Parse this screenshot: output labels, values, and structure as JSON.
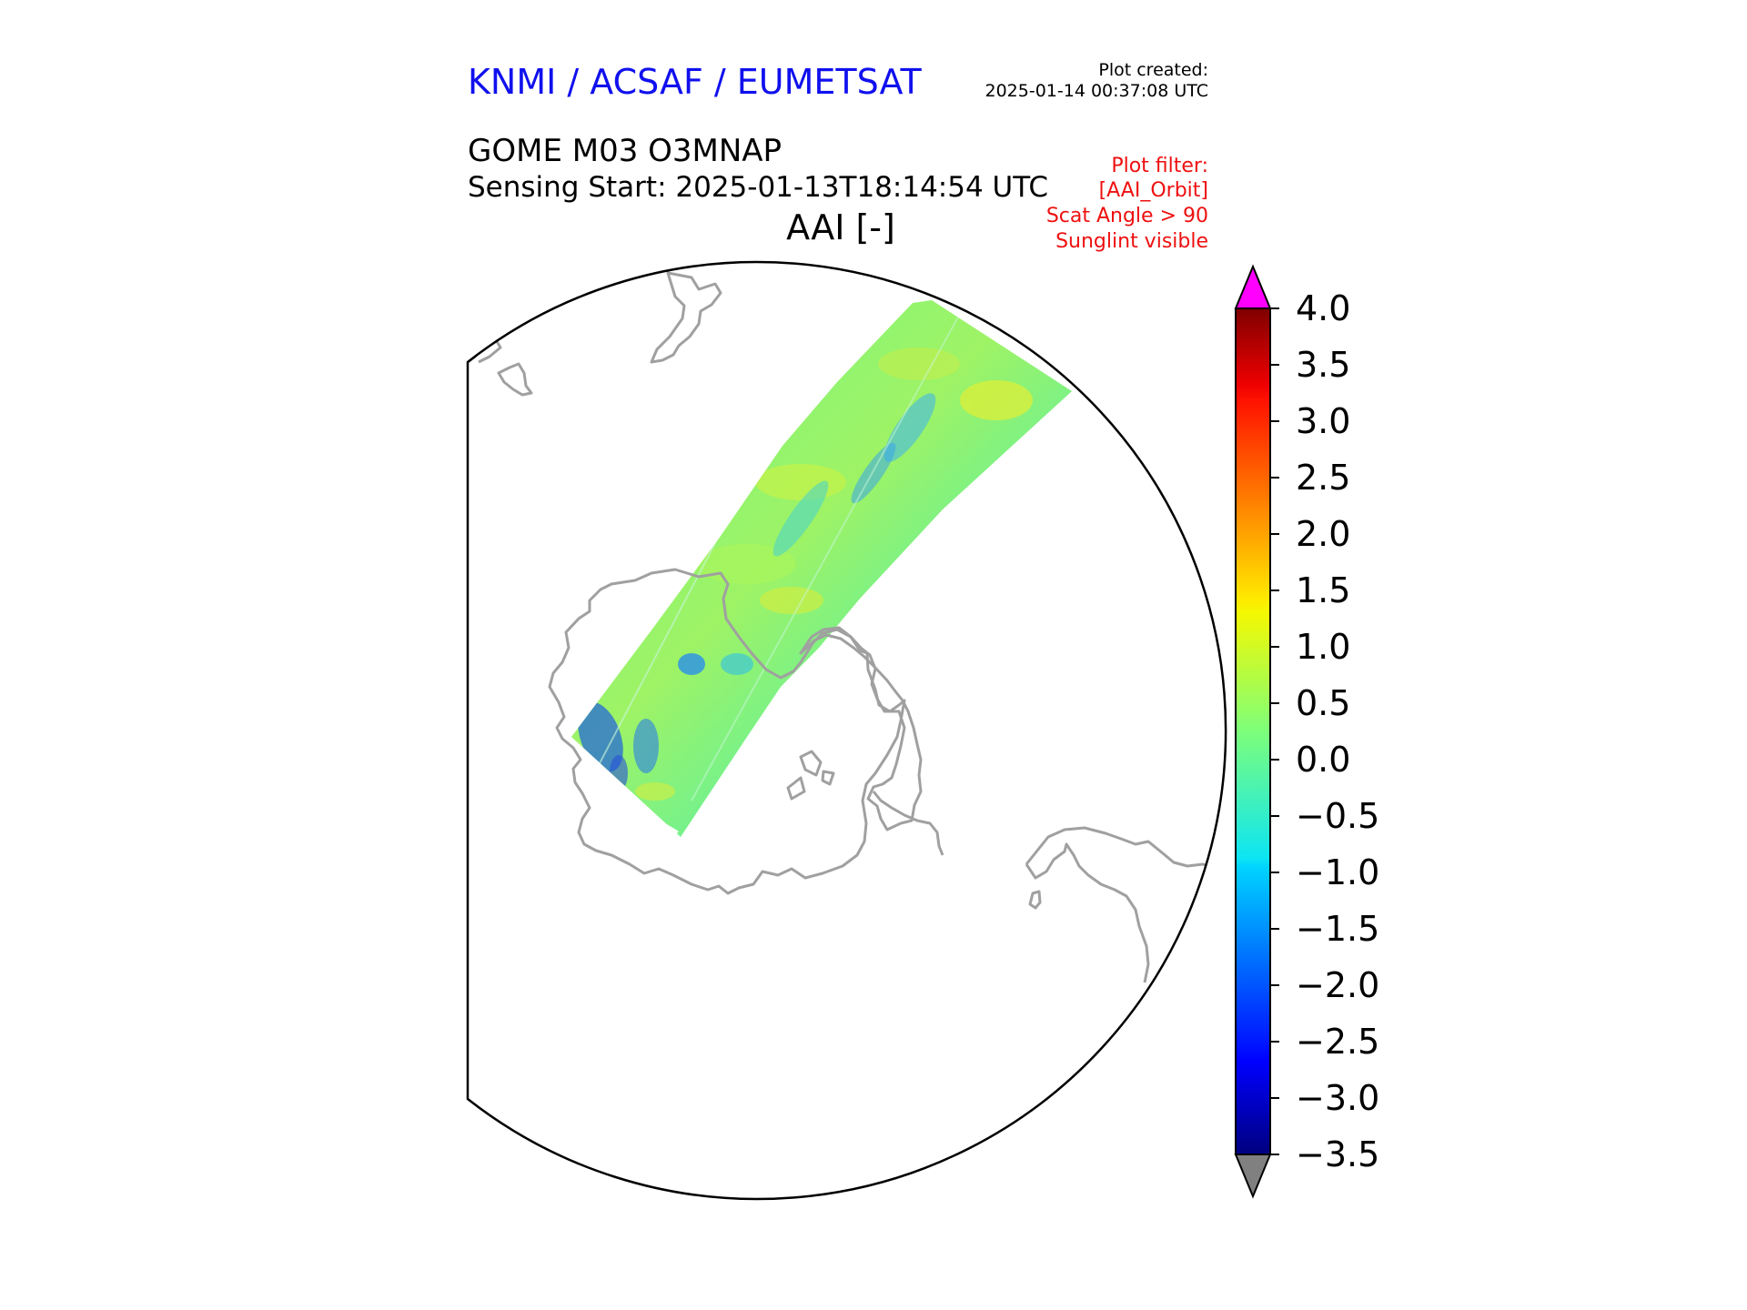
{
  "header": {
    "organization": "KNMI / ACSAF / EUMETSAT",
    "plot_created_label": "Plot created:",
    "plot_created_time": "2025-01-14 00:37:08 UTC"
  },
  "product": {
    "name": "GOME M03 O3MNAP",
    "sensing_start": "Sensing Start: 2025-01-13T18:14:54 UTC",
    "field_title": "AAI [-]"
  },
  "filter": {
    "title": "Plot filter:",
    "lines": [
      "[AAI_Orbit]",
      "Scat Angle > 90",
      "Sunglint visible"
    ]
  },
  "colors": {
    "coastline": "#a0a0a0",
    "over_range": "#ff00ff",
    "under_range": "#808080",
    "title_blue": "#1010ee",
    "filter_red": "#ee1010"
  },
  "colorbar": {
    "min": -3.5,
    "max": 4.0,
    "tick_values": [
      4.0,
      3.5,
      3.0,
      2.5,
      2.0,
      1.5,
      1.0,
      0.5,
      0.0,
      -0.5,
      -1.0,
      -1.5,
      -2.0,
      -2.5,
      -3.0,
      -3.5
    ],
    "tick_labels": [
      "4.0",
      "3.5",
      "3.0",
      "2.5",
      "2.0",
      "1.5",
      "1.0",
      "0.5",
      "0.0",
      "−0.5",
      "−1.0",
      "−1.5",
      "−2.0",
      "−2.5",
      "−3.0",
      "−3.5"
    ]
  }
}
